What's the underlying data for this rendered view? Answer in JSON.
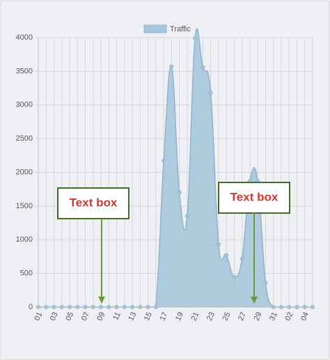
{
  "chart_data": {
    "type": "area",
    "series": [
      {
        "name": "Traffic",
        "color": "#a7c7dc",
        "values": [
          0,
          0,
          0,
          0,
          0,
          0,
          0,
          0,
          0,
          0,
          0,
          0,
          0,
          0,
          0,
          0,
          2170,
          3570,
          1700,
          1350,
          3990,
          3560,
          3180,
          930,
          770,
          450,
          720,
          1870,
          1870,
          360,
          0,
          0,
          0,
          0,
          0,
          0
        ]
      }
    ],
    "categories": [
      "01",
      null,
      "03",
      null,
      "05",
      null,
      "07",
      null,
      "09",
      null,
      "11",
      null,
      "13",
      null,
      "15",
      null,
      "17",
      null,
      "19",
      null,
      "21",
      null,
      "23",
      null,
      "25",
      null,
      "27",
      null,
      "29",
      null,
      "31",
      null,
      "02",
      null,
      "04",
      null
    ],
    "ylim": [
      0,
      4000
    ],
    "yticks": [
      0,
      500,
      1000,
      1500,
      2000,
      2500,
      3000,
      3500,
      4000
    ],
    "grid": true,
    "legend": "top",
    "annotations": [
      {
        "text": "Text box"
      },
      {
        "text": "Text box"
      }
    ]
  }
}
